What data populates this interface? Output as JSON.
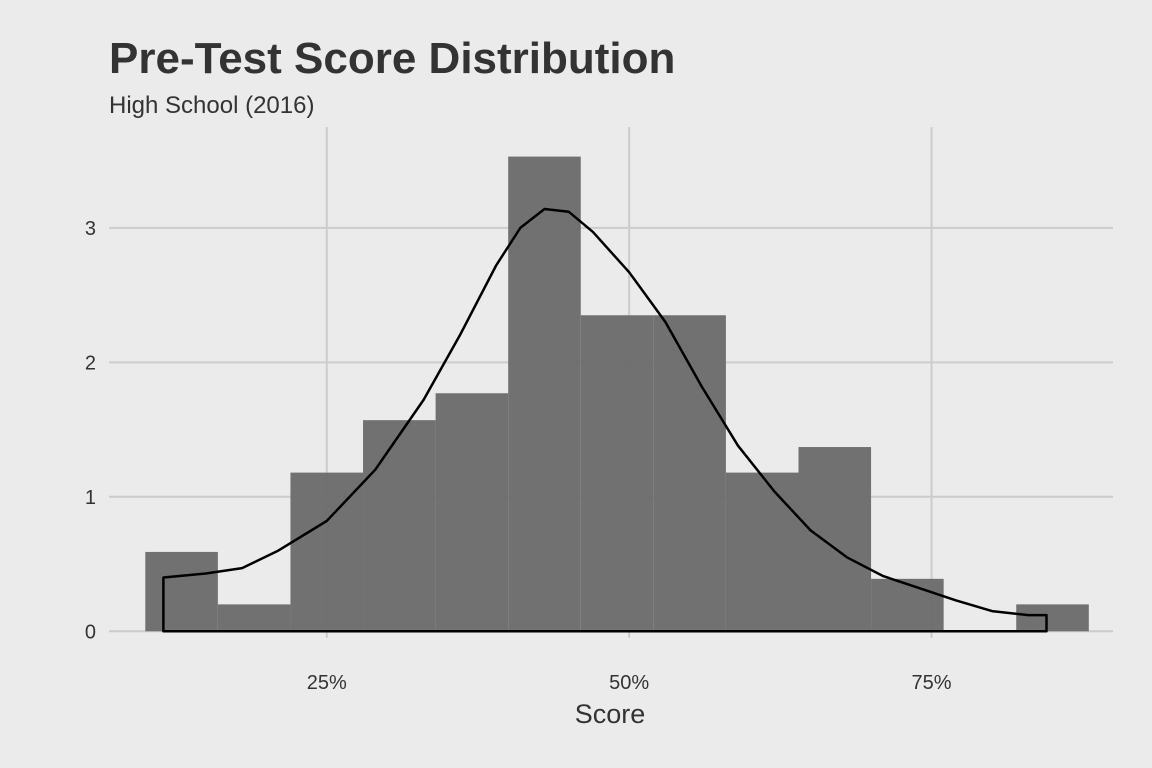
{
  "chart_data": {
    "type": "bar",
    "subtype": "histogram",
    "title": "Pre-Test Score Distribution",
    "subtitle": "High School (2016)",
    "xlabel": "Score",
    "ylabel": "",
    "xlim": [
      0.07,
      0.9
    ],
    "ylim": [
      -0.05,
      3.75
    ],
    "x_ticks": [
      {
        "value": 0.25,
        "label": "25%"
      },
      {
        "value": 0.5,
        "label": "50%"
      },
      {
        "value": 0.75,
        "label": "75%"
      }
    ],
    "y_ticks": [
      {
        "value": 0,
        "label": "0"
      },
      {
        "value": 1,
        "label": "1"
      },
      {
        "value": 2,
        "label": "2"
      },
      {
        "value": 3,
        "label": "3"
      }
    ],
    "grid": true,
    "bar_color": "#6e6e6e",
    "bins": [
      {
        "x0": 0.1,
        "x1": 0.16,
        "value": 0.59
      },
      {
        "x0": 0.16,
        "x1": 0.22,
        "value": 0.2
      },
      {
        "x0": 0.22,
        "x1": 0.28,
        "value": 1.18
      },
      {
        "x0": 0.28,
        "x1": 0.34,
        "value": 1.57
      },
      {
        "x0": 0.34,
        "x1": 0.4,
        "value": 1.77
      },
      {
        "x0": 0.4,
        "x1": 0.46,
        "value": 3.53
      },
      {
        "x0": 0.46,
        "x1": 0.52,
        "value": 2.35
      },
      {
        "x0": 0.52,
        "x1": 0.58,
        "value": 2.35
      },
      {
        "x0": 0.58,
        "x1": 0.64,
        "value": 1.18
      },
      {
        "x0": 0.64,
        "x1": 0.7,
        "value": 1.37
      },
      {
        "x0": 0.7,
        "x1": 0.76,
        "value": 0.39
      },
      {
        "x0": 0.76,
        "x1": 0.82,
        "value": 0.0
      },
      {
        "x0": 0.82,
        "x1": 0.88,
        "value": 0.2
      }
    ],
    "density_line": {
      "color": "#000000",
      "points": [
        [
          0.115,
          0.0
        ],
        [
          0.115,
          0.4
        ],
        [
          0.15,
          0.43
        ],
        [
          0.18,
          0.47
        ],
        [
          0.21,
          0.6
        ],
        [
          0.25,
          0.82
        ],
        [
          0.29,
          1.2
        ],
        [
          0.33,
          1.72
        ],
        [
          0.36,
          2.2
        ],
        [
          0.39,
          2.72
        ],
        [
          0.41,
          3.0
        ],
        [
          0.43,
          3.14
        ],
        [
          0.45,
          3.12
        ],
        [
          0.47,
          2.97
        ],
        [
          0.5,
          2.67
        ],
        [
          0.53,
          2.3
        ],
        [
          0.56,
          1.82
        ],
        [
          0.59,
          1.38
        ],
        [
          0.62,
          1.04
        ],
        [
          0.65,
          0.75
        ],
        [
          0.68,
          0.55
        ],
        [
          0.71,
          0.41
        ],
        [
          0.74,
          0.32
        ],
        [
          0.77,
          0.23
        ],
        [
          0.8,
          0.15
        ],
        [
          0.83,
          0.12
        ],
        [
          0.845,
          0.12
        ],
        [
          0.845,
          0.0
        ],
        [
          0.115,
          0.0
        ]
      ]
    }
  }
}
